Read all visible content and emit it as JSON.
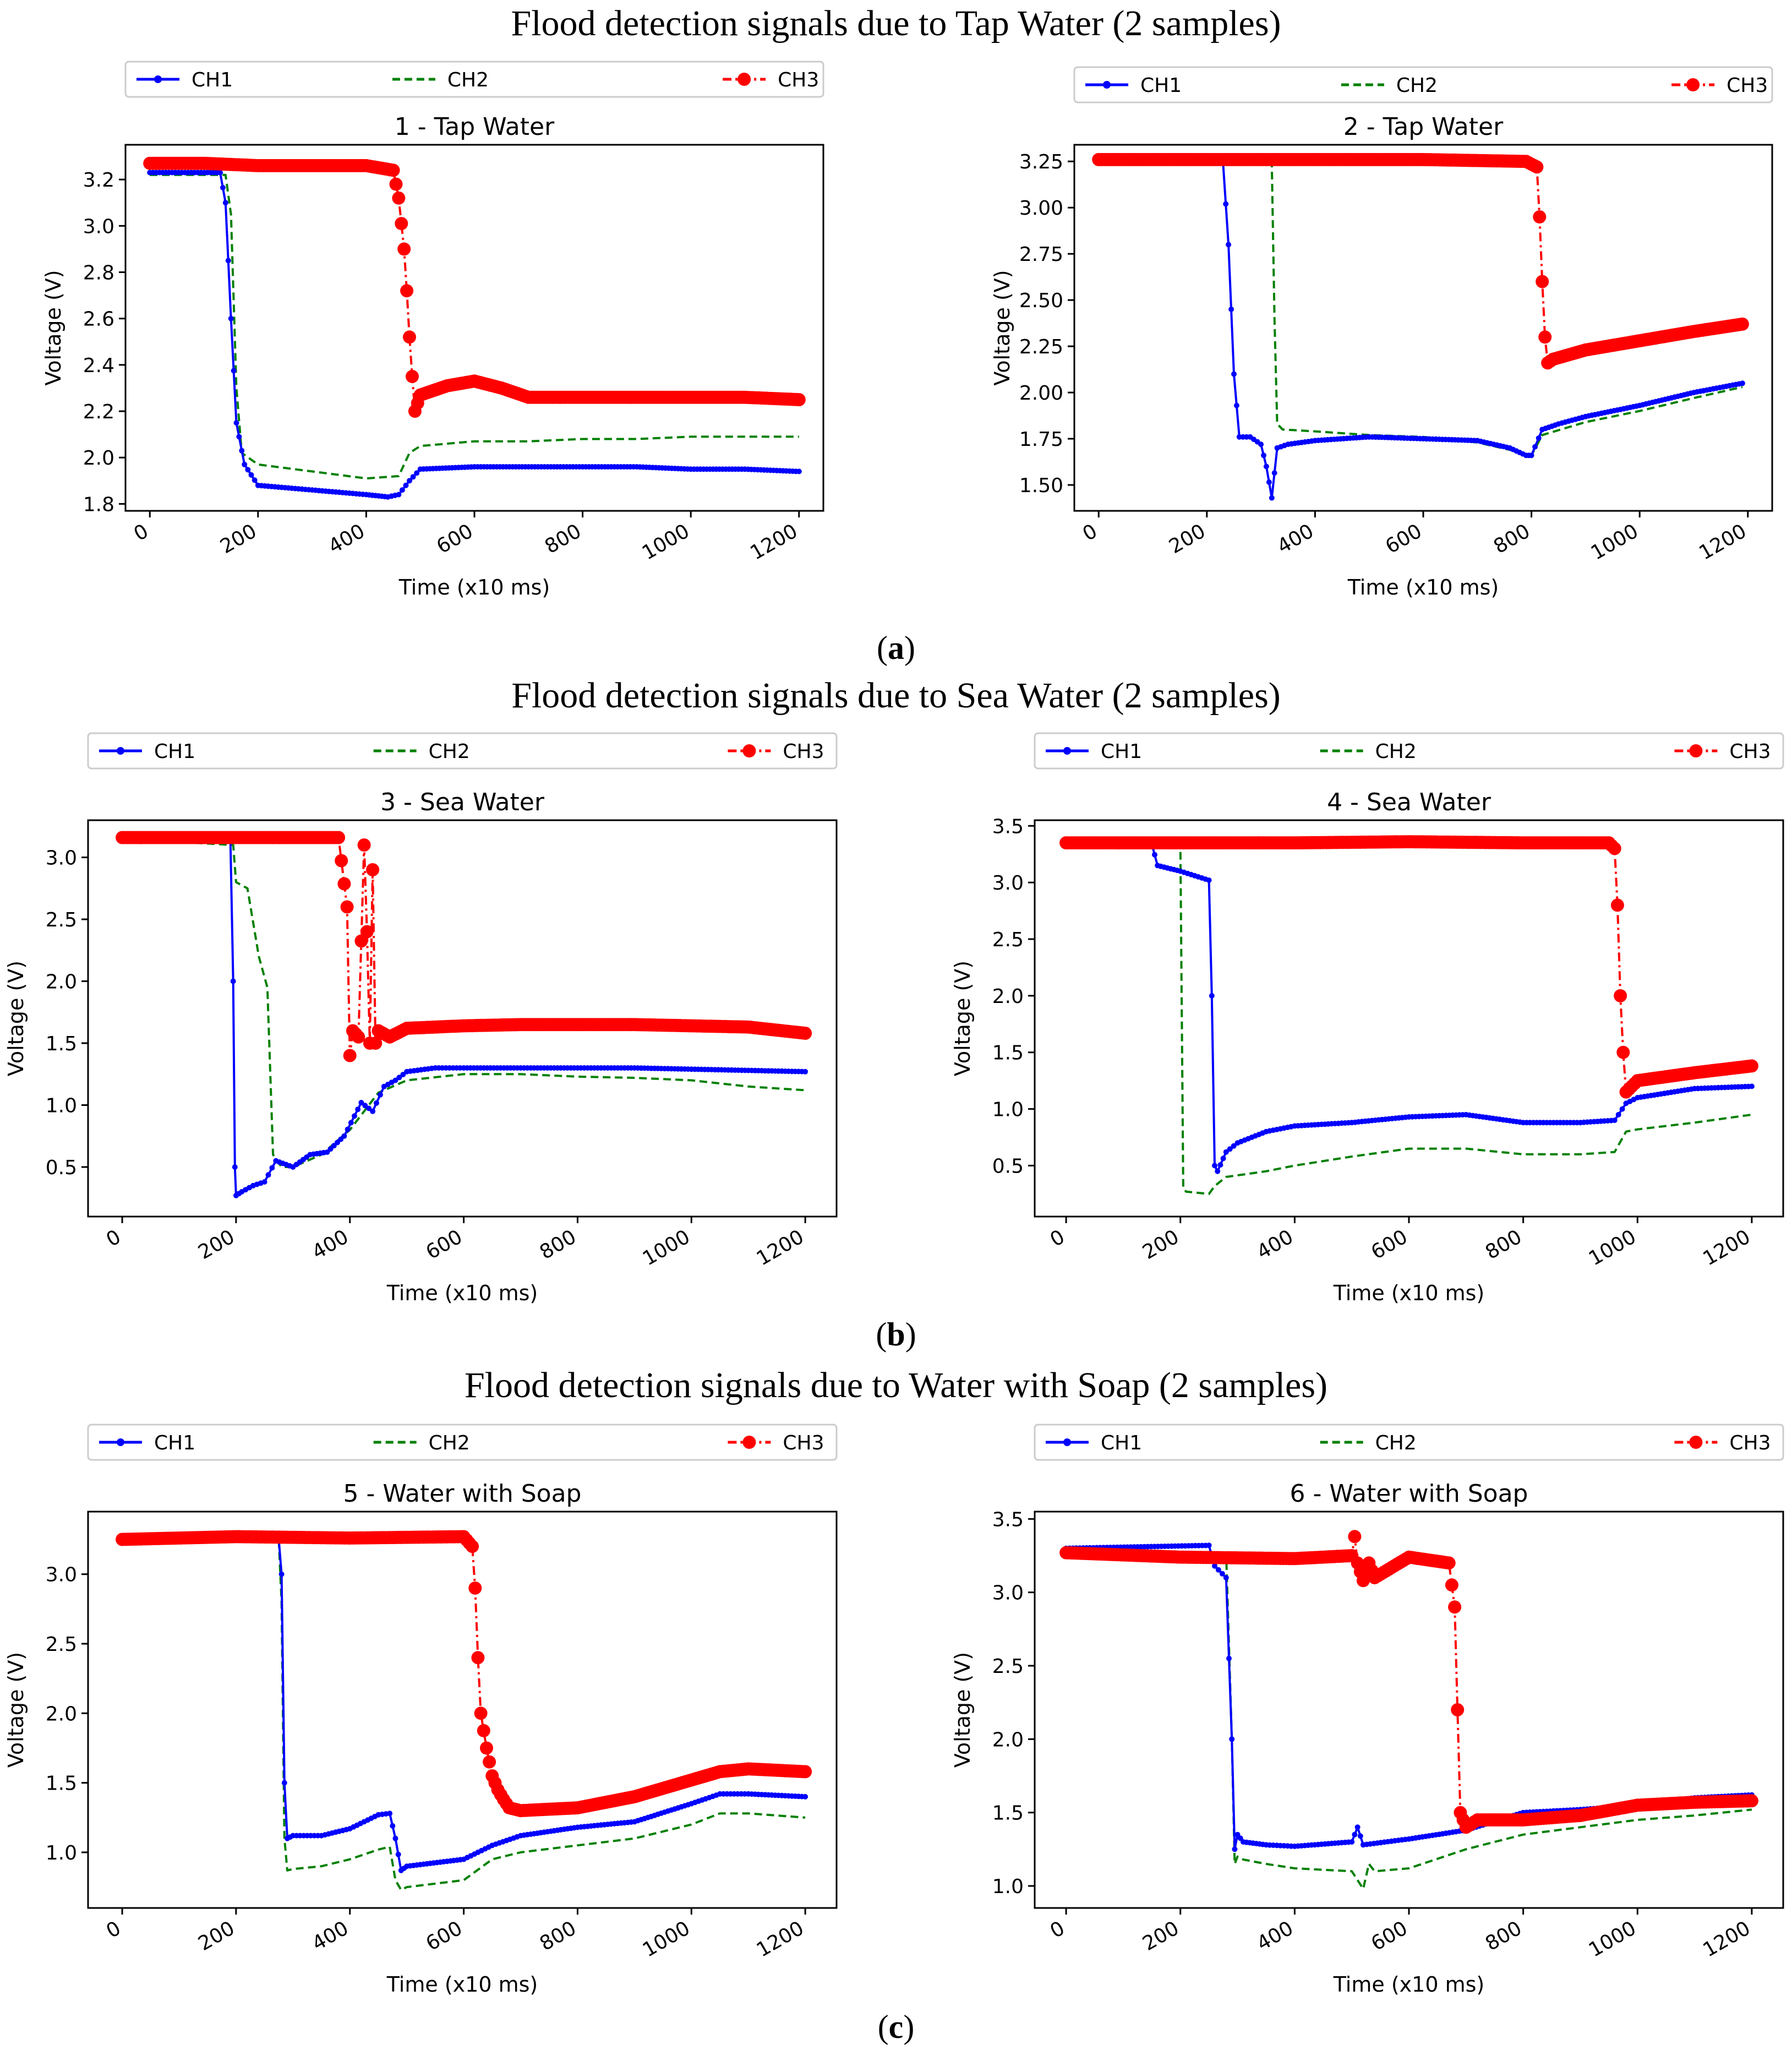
{
  "figure": {
    "rows": [
      {
        "title": "Flood detection signals due to Tap Water (2 samples)",
        "label_open": "(",
        "label_letter": "a",
        "label_close": ")"
      },
      {
        "title": "Flood detection signals due to Sea Water (2 samples)",
        "label_open": "(",
        "label_letter": "b",
        "label_close": ")"
      },
      {
        "title": "Flood detection signals due to Water with Soap (2 samples)",
        "label_open": "(",
        "label_letter": "c",
        "label_close": ")"
      }
    ]
  },
  "legend": {
    "position": "top, above plot, horizontal",
    "entries": [
      {
        "name": "CH1",
        "color": "#0000ff",
        "style": "solid line with small dot markers"
      },
      {
        "name": "CH2",
        "color": "#008000",
        "style": "dashed line"
      },
      {
        "name": "CH3",
        "color": "#ff0000",
        "style": "dash-dot line with large circle markers"
      }
    ]
  },
  "chart_data": [
    {
      "type": "line",
      "title": "1 - Tap Water",
      "xlabel": "Time (x10 ms)",
      "ylabel": "Voltage (V)",
      "xlim": [
        -45,
        1245
      ],
      "ylim": [
        1.77,
        3.35
      ],
      "xticks": [
        0,
        200,
        400,
        600,
        800,
        1000,
        1200
      ],
      "yticks": [
        1.8,
        2.0,
        2.2,
        2.4,
        2.6,
        2.8,
        3.0,
        3.2
      ],
      "ytick_labels": [
        "1.8",
        "2.0",
        "2.2",
        "2.4",
        "2.6",
        "2.8",
        "3.0",
        "3.2"
      ],
      "grid": false,
      "series": [
        {
          "name": "CH1",
          "x": [
            0,
            130,
            140,
            150,
            160,
            175,
            200,
            250,
            300,
            350,
            400,
            440,
            460,
            480,
            500,
            600,
            700,
            800,
            900,
            1000,
            1100,
            1200
          ],
          "y": [
            3.23,
            3.23,
            3.1,
            2.6,
            2.15,
            1.97,
            1.88,
            1.87,
            1.86,
            1.85,
            1.84,
            1.83,
            1.84,
            1.9,
            1.95,
            1.96,
            1.96,
            1.96,
            1.96,
            1.95,
            1.95,
            1.94
          ]
        },
        {
          "name": "CH2",
          "x": [
            0,
            140,
            150,
            160,
            170,
            200,
            300,
            400,
            460,
            480,
            500,
            600,
            700,
            800,
            900,
            1000,
            1100,
            1200
          ],
          "y": [
            3.22,
            3.22,
            3.05,
            2.3,
            2.02,
            1.97,
            1.94,
            1.91,
            1.92,
            2.02,
            2.05,
            2.07,
            2.07,
            2.08,
            2.08,
            2.09,
            2.09,
            2.09
          ]
        },
        {
          "name": "CH3",
          "x": [
            0,
            100,
            200,
            300,
            400,
            450,
            460,
            470,
            475,
            480,
            485,
            490,
            500,
            550,
            600,
            650,
            700,
            800,
            900,
            1000,
            1100,
            1200
          ],
          "y": [
            3.27,
            3.27,
            3.26,
            3.26,
            3.26,
            3.24,
            3.12,
            2.9,
            2.72,
            2.52,
            2.35,
            2.2,
            2.27,
            2.31,
            2.33,
            2.3,
            2.26,
            2.26,
            2.26,
            2.26,
            2.26,
            2.25
          ]
        }
      ]
    },
    {
      "type": "line",
      "title": "2 - Tap Water",
      "xlabel": "Time (x10 ms)",
      "ylabel": "Voltage (V)",
      "xlim": [
        -45,
        1245
      ],
      "ylim": [
        1.36,
        3.34
      ],
      "xticks": [
        0,
        200,
        400,
        600,
        800,
        1000,
        1200
      ],
      "yticks": [
        1.5,
        1.75,
        2.0,
        2.25,
        2.5,
        2.75,
        3.0,
        3.25
      ],
      "ytick_labels": [
        "1.50",
        "1.75",
        "2.00",
        "2.25",
        "2.50",
        "2.75",
        "3.00",
        "3.25"
      ],
      "grid": false,
      "series": [
        {
          "name": "CH1",
          "x": [
            0,
            230,
            240,
            250,
            260,
            280,
            300,
            310,
            320,
            330,
            350,
            400,
            500,
            600,
            700,
            760,
            790,
            800,
            820,
            850,
            900,
            1000,
            1100,
            1190
          ],
          "y": [
            3.25,
            3.24,
            2.8,
            2.1,
            1.76,
            1.76,
            1.72,
            1.6,
            1.43,
            1.7,
            1.72,
            1.74,
            1.76,
            1.75,
            1.74,
            1.7,
            1.66,
            1.66,
            1.8,
            1.83,
            1.87,
            1.93,
            2.0,
            2.05
          ]
        },
        {
          "name": "CH2",
          "x": [
            0,
            320,
            325,
            330,
            340,
            400,
            500,
            600,
            700,
            760,
            800,
            820,
            900,
            1000,
            1100,
            1190
          ],
          "y": [
            3.24,
            3.24,
            2.4,
            1.83,
            1.8,
            1.79,
            1.77,
            1.76,
            1.73,
            1.69,
            1.66,
            1.77,
            1.84,
            1.9,
            1.97,
            2.03
          ]
        },
        {
          "name": "CH3",
          "x": [
            0,
            200,
            400,
            600,
            790,
            810,
            815,
            820,
            825,
            830,
            840,
            900,
            1000,
            1100,
            1190
          ],
          "y": [
            3.26,
            3.26,
            3.26,
            3.26,
            3.25,
            3.22,
            2.95,
            2.6,
            2.3,
            2.16,
            2.18,
            2.23,
            2.28,
            2.33,
            2.37
          ]
        }
      ]
    },
    {
      "type": "line",
      "title": "3 - Sea Water",
      "xlabel": "Time (x10 ms)",
      "ylabel": "Voltage (V)",
      "xlim": [
        -60,
        1255
      ],
      "ylim": [
        0.1,
        3.3
      ],
      "xticks": [
        0,
        200,
        400,
        600,
        800,
        1000,
        1200
      ],
      "yticks": [
        0.5,
        1.0,
        1.5,
        2.0,
        2.5,
        3.0
      ],
      "ytick_labels": [
        "0.5",
        "1.0",
        "1.5",
        "2.0",
        "2.5",
        "3.0"
      ],
      "grid": false,
      "series": [
        {
          "name": "CH1",
          "x": [
            0,
            190,
            195,
            198,
            200,
            210,
            230,
            250,
            270,
            300,
            330,
            360,
            390,
            420,
            440,
            460,
            480,
            500,
            550,
            600,
            700,
            800,
            900,
            1000,
            1100,
            1200
          ],
          "y": [
            3.18,
            3.15,
            2.0,
            0.5,
            0.27,
            0.3,
            0.35,
            0.38,
            0.55,
            0.5,
            0.6,
            0.62,
            0.75,
            1.02,
            0.95,
            1.15,
            1.2,
            1.27,
            1.3,
            1.3,
            1.3,
            1.3,
            1.3,
            1.29,
            1.28,
            1.27
          ]
        },
        {
          "name": "CH2",
          "x": [
            0,
            195,
            200,
            220,
            240,
            255,
            265,
            280,
            300,
            350,
            400,
            450,
            500,
            600,
            700,
            800,
            900,
            1000,
            1100,
            1200
          ],
          "y": [
            3.15,
            3.1,
            2.8,
            2.75,
            2.2,
            1.95,
            0.6,
            0.5,
            0.5,
            0.6,
            0.8,
            1.1,
            1.2,
            1.25,
            1.25,
            1.23,
            1.22,
            1.2,
            1.15,
            1.12
          ]
        },
        {
          "name": "CH3",
          "x": [
            0,
            200,
            380,
            395,
            400,
            405,
            415,
            425,
            430,
            435,
            440,
            445,
            450,
            470,
            500,
            600,
            700,
            800,
            900,
            1000,
            1100,
            1200
          ],
          "y": [
            3.16,
            3.16,
            3.16,
            2.6,
            1.4,
            1.6,
            1.55,
            3.1,
            2.4,
            1.5,
            2.9,
            1.5,
            1.6,
            1.55,
            1.62,
            1.64,
            1.65,
            1.65,
            1.65,
            1.64,
            1.63,
            1.58
          ]
        }
      ]
    },
    {
      "type": "line",
      "title": "4 - Sea Water",
      "xlabel": "Time (x10 ms)",
      "ylabel": "Voltage (V)",
      "xlim": [
        -55,
        1255
      ],
      "ylim": [
        0.05,
        3.55
      ],
      "xticks": [
        0,
        200,
        400,
        600,
        800,
        1000,
        1200
      ],
      "yticks": [
        0.5,
        1.0,
        1.5,
        2.0,
        2.5,
        3.0,
        3.5
      ],
      "ytick_labels": [
        "0.5",
        "1.0",
        "1.5",
        "2.0",
        "2.5",
        "3.0",
        "3.5"
      ],
      "grid": false,
      "series": [
        {
          "name": "CH1",
          "x": [
            0,
            150,
            160,
            200,
            250,
            255,
            260,
            265,
            280,
            300,
            350,
            400,
            500,
            600,
            700,
            800,
            900,
            960,
            980,
            1000,
            1100,
            1200
          ],
          "y": [
            3.35,
            3.34,
            3.15,
            3.1,
            3.02,
            2.0,
            0.5,
            0.45,
            0.62,
            0.7,
            0.8,
            0.85,
            0.88,
            0.93,
            0.95,
            0.88,
            0.88,
            0.9,
            1.05,
            1.1,
            1.18,
            1.2
          ]
        },
        {
          "name": "CH2",
          "x": [
            0,
            200,
            205,
            210,
            250,
            260,
            280,
            350,
            400,
            500,
            600,
            700,
            800,
            900,
            960,
            980,
            1000,
            1100,
            1200
          ],
          "y": [
            3.33,
            3.33,
            0.3,
            0.27,
            0.25,
            0.32,
            0.4,
            0.45,
            0.5,
            0.58,
            0.65,
            0.65,
            0.6,
            0.6,
            0.62,
            0.8,
            0.82,
            0.88,
            0.95
          ]
        },
        {
          "name": "CH3",
          "x": [
            0,
            200,
            400,
            600,
            800,
            950,
            960,
            965,
            970,
            975,
            980,
            990,
            1000,
            1100,
            1200
          ],
          "y": [
            3.35,
            3.35,
            3.35,
            3.36,
            3.35,
            3.35,
            3.3,
            2.8,
            2.0,
            1.5,
            1.15,
            1.2,
            1.25,
            1.32,
            1.38
          ]
        }
      ]
    },
    {
      "type": "line",
      "title": "5 - Water with Soap",
      "xlabel": "Time (x10 ms)",
      "ylabel": "Voltage (V)",
      "xlim": [
        -60,
        1255
      ],
      "ylim": [
        0.6,
        3.45
      ],
      "xticks": [
        0,
        200,
        400,
        600,
        800,
        1000,
        1200
      ],
      "yticks": [
        1.0,
        1.5,
        2.0,
        2.5,
        3.0
      ],
      "ytick_labels": [
        "1.0",
        "1.5",
        "2.0",
        "2.5",
        "3.0"
      ],
      "grid": false,
      "series": [
        {
          "name": "CH1",
          "x": [
            0,
            275,
            280,
            285,
            290,
            300,
            350,
            400,
            450,
            470,
            480,
            490,
            500,
            600,
            650,
            700,
            800,
            900,
            1000,
            1050,
            1100,
            1200
          ],
          "y": [
            3.25,
            3.25,
            3.0,
            1.5,
            1.1,
            1.12,
            1.12,
            1.17,
            1.27,
            1.28,
            1.1,
            0.87,
            0.9,
            0.95,
            1.05,
            1.12,
            1.18,
            1.22,
            1.35,
            1.42,
            1.42,
            1.4
          ]
        },
        {
          "name": "CH2",
          "x": [
            0,
            275,
            280,
            285,
            290,
            300,
            350,
            400,
            450,
            470,
            480,
            490,
            500,
            600,
            650,
            700,
            800,
            900,
            1000,
            1050,
            1100,
            1200
          ],
          "y": [
            3.25,
            3.25,
            2.8,
            1.1,
            0.87,
            0.88,
            0.9,
            0.95,
            1.02,
            1.04,
            0.8,
            0.73,
            0.75,
            0.8,
            0.95,
            1.0,
            1.05,
            1.1,
            1.2,
            1.28,
            1.28,
            1.25
          ]
        },
        {
          "name": "CH3",
          "x": [
            0,
            200,
            400,
            600,
            615,
            620,
            625,
            630,
            640,
            650,
            660,
            670,
            680,
            700,
            800,
            900,
            1000,
            1050,
            1100,
            1200
          ],
          "y": [
            3.25,
            3.27,
            3.26,
            3.27,
            3.2,
            2.9,
            2.4,
            2.0,
            1.75,
            1.55,
            1.45,
            1.38,
            1.32,
            1.3,
            1.32,
            1.4,
            1.52,
            1.58,
            1.6,
            1.58
          ]
        }
      ]
    },
    {
      "type": "line",
      "title": "6 - Water with Soap",
      "xlabel": "Time (x10 ms)",
      "ylabel": "Voltage (V)",
      "xlim": [
        -55,
        1255
      ],
      "ylim": [
        0.85,
        3.55
      ],
      "xticks": [
        0,
        200,
        400,
        600,
        800,
        1000,
        1200
      ],
      "yticks": [
        1.0,
        1.5,
        2.0,
        2.5,
        3.0,
        3.5
      ],
      "ytick_labels": [
        "1.0",
        "1.5",
        "2.0",
        "2.5",
        "3.0",
        "3.5"
      ],
      "grid": false,
      "series": [
        {
          "name": "CH1",
          "x": [
            0,
            250,
            260,
            280,
            290,
            295,
            300,
            310,
            350,
            400,
            500,
            510,
            520,
            600,
            700,
            800,
            900,
            1000,
            1100,
            1200
          ],
          "y": [
            3.3,
            3.32,
            3.18,
            3.1,
            2.0,
            1.25,
            1.35,
            1.3,
            1.28,
            1.27,
            1.3,
            1.4,
            1.28,
            1.32,
            1.38,
            1.5,
            1.52,
            1.55,
            1.6,
            1.62
          ]
        },
        {
          "name": "CH2",
          "x": [
            0,
            280,
            290,
            295,
            300,
            310,
            350,
            400,
            500,
            520,
            530,
            540,
            600,
            700,
            800,
            900,
            1000,
            1100,
            1200
          ],
          "y": [
            3.27,
            3.27,
            2.0,
            1.15,
            1.2,
            1.18,
            1.15,
            1.12,
            1.1,
            0.98,
            1.15,
            1.1,
            1.12,
            1.25,
            1.35,
            1.4,
            1.45,
            1.48,
            1.52
          ]
        },
        {
          "name": "CH3",
          "x": [
            0,
            200,
            400,
            500,
            505,
            510,
            520,
            530,
            540,
            600,
            670,
            680,
            685,
            690,
            700,
            720,
            800,
            900,
            1000,
            1100,
            1200
          ],
          "y": [
            3.27,
            3.24,
            3.23,
            3.25,
            3.38,
            3.2,
            3.08,
            3.2,
            3.1,
            3.24,
            3.2,
            2.9,
            2.2,
            1.5,
            1.4,
            1.45,
            1.45,
            1.48,
            1.55,
            1.57,
            1.58
          ]
        }
      ]
    }
  ]
}
